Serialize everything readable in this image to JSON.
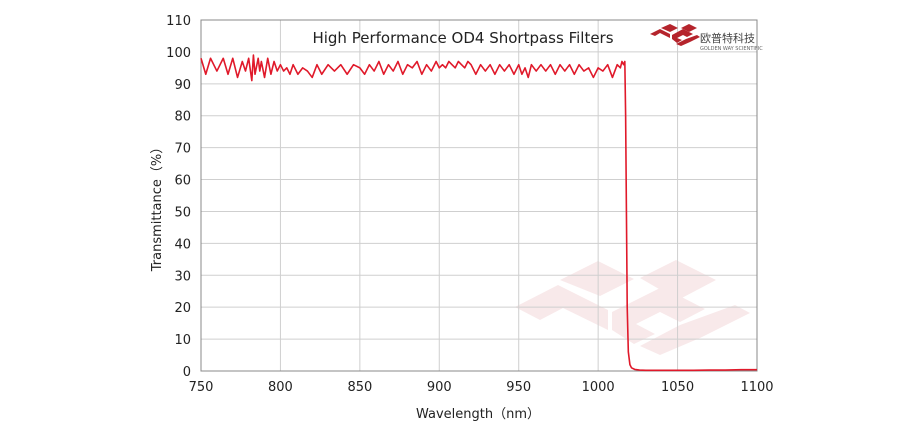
{
  "brand": {
    "name_cn": "欧普特科技",
    "name_en": "GOLDEN WAY SCIENTIFIC",
    "color": "#b5242c",
    "icon": "golden-way-logo-icon"
  },
  "chart_data": {
    "type": "line",
    "title": "High Performance OD4 Shortpass  Filters",
    "xlabel": "Wavelength（nm）",
    "ylabel": "Transmittance（%）",
    "xlim": [
      750,
      1100
    ],
    "ylim": [
      0,
      110
    ],
    "x_ticks": [
      750,
      800,
      850,
      900,
      950,
      1000,
      1050,
      1100
    ],
    "y_ticks": [
      0,
      10,
      20,
      30,
      40,
      50,
      60,
      70,
      80,
      90,
      100,
      110
    ],
    "grid": true,
    "line_color": "#e0192a",
    "series": [
      {
        "x": [
          750,
          753,
          756,
          760,
          764,
          767,
          770,
          773,
          776,
          778,
          780,
          782,
          783,
          784,
          786,
          787,
          788,
          790,
          792,
          794,
          796,
          798,
          800,
          802,
          804,
          806,
          808,
          811,
          814,
          817,
          820,
          823,
          826,
          830,
          834,
          838,
          842,
          846,
          850,
          853,
          856,
          859,
          862,
          865,
          868,
          871,
          874,
          877,
          880,
          883,
          886,
          889,
          892,
          895,
          898,
          900,
          902,
          904,
          906,
          908,
          910,
          912,
          914,
          916,
          918,
          920,
          923,
          926,
          929,
          932,
          935,
          938,
          941,
          944,
          947,
          950,
          952,
          954,
          956,
          958,
          961,
          964,
          967,
          970,
          973,
          976,
          979,
          982,
          985,
          988,
          991,
          994,
          997,
          1000,
          1003,
          1006,
          1009,
          1012,
          1014,
          1015,
          1016,
          1016.8,
          1017.3,
          1017.8,
          1018.3,
          1019,
          1020,
          1021,
          1023,
          1026,
          1030,
          1040,
          1050,
          1060,
          1070,
          1080,
          1090,
          1100
        ],
        "y": [
          98,
          93,
          98,
          94,
          98,
          93,
          98,
          92,
          97,
          94,
          98,
          91,
          99,
          93,
          98,
          94,
          97,
          92,
          98,
          93,
          97,
          94,
          96,
          94,
          95,
          93,
          96,
          93,
          95,
          94,
          92,
          96,
          93,
          96,
          94,
          96,
          93,
          96,
          95,
          93,
          96,
          94,
          97,
          93,
          96,
          94,
          97,
          93,
          96,
          95,
          97,
          93,
          96,
          94,
          97,
          95,
          96,
          95,
          97,
          96,
          95,
          97,
          96,
          95,
          97,
          96,
          93,
          96,
          94,
          96,
          93,
          96,
          94,
          96,
          93,
          96,
          93,
          95,
          92,
          96,
          94,
          96,
          94,
          96,
          93,
          96,
          94,
          96,
          93,
          96,
          94,
          95,
          92,
          95,
          94,
          96,
          92,
          96,
          95,
          97,
          96,
          97,
          80,
          50,
          20,
          6,
          2,
          1,
          0.5,
          0.3,
          0.2,
          0.2,
          0.2,
          0.2,
          0.3,
          0.3,
          0.4,
          0.4
        ]
      }
    ]
  }
}
